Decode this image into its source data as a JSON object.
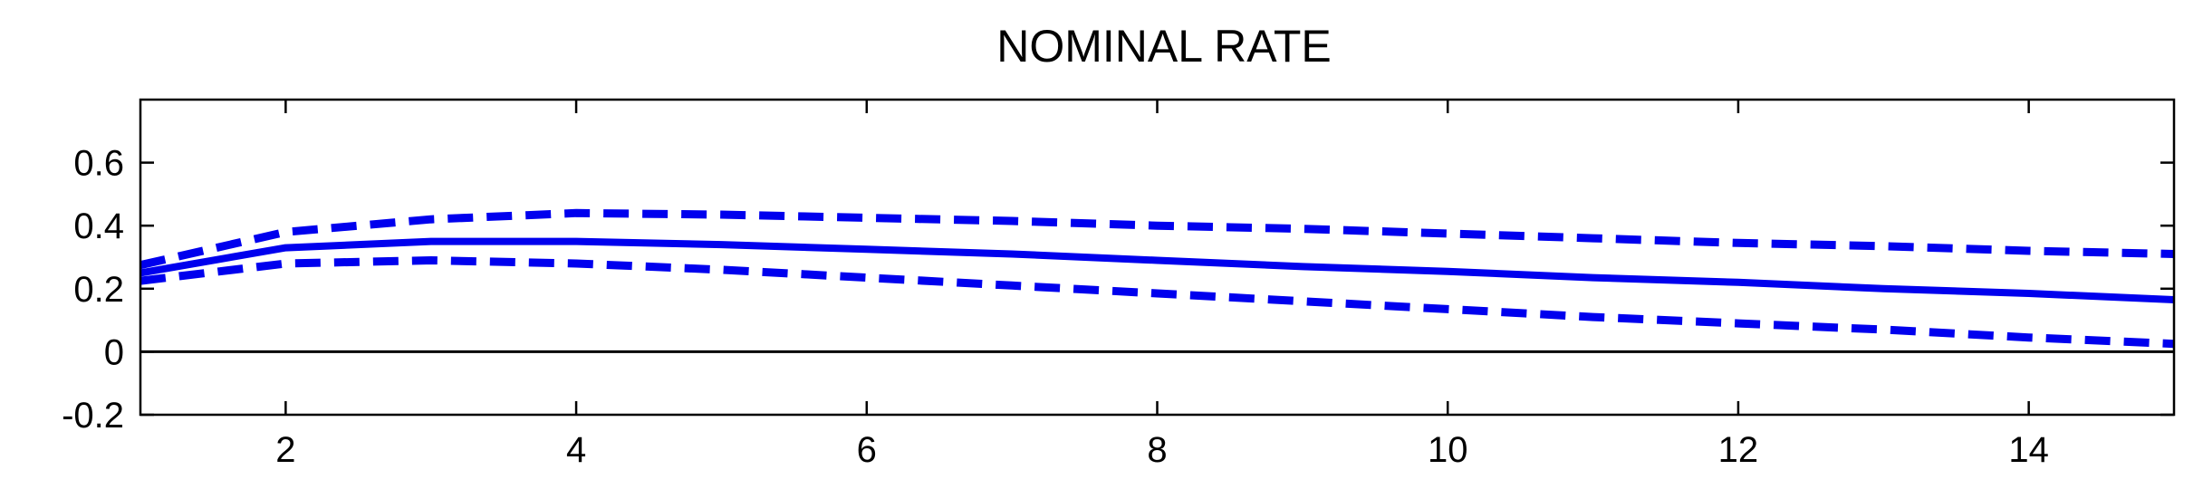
{
  "chart_data": {
    "type": "line",
    "title": "NOMINAL RATE",
    "xlabel": "",
    "ylabel": "",
    "xlim": [
      1,
      15
    ],
    "ylim": [
      -0.2,
      0.8
    ],
    "x_ticks": [
      2,
      4,
      6,
      8,
      10,
      12,
      14
    ],
    "x_tick_labels": [
      "2",
      "4",
      "6",
      "8",
      "10",
      "12",
      "14"
    ],
    "y_ticks": [
      -0.2,
      0,
      0.2,
      0.4,
      0.6
    ],
    "y_tick_labels": [
      "-0.2",
      "0",
      "0.2",
      "0.4",
      "0.6"
    ],
    "grid": false,
    "zero_line": true,
    "colors": {
      "series": "#0000ee",
      "axes": "#000000"
    },
    "x": [
      1,
      2,
      3,
      4,
      5,
      6,
      7,
      8,
      9,
      10,
      11,
      12,
      13,
      14,
      15
    ],
    "series": [
      {
        "style": "solid",
        "values": [
          0.25,
          0.33,
          0.35,
          0.35,
          0.34,
          0.325,
          0.31,
          0.29,
          0.27,
          0.255,
          0.235,
          0.22,
          0.2,
          0.185,
          0.165
        ]
      },
      {
        "style": "dashed",
        "values": [
          0.275,
          0.38,
          0.42,
          0.44,
          0.435,
          0.425,
          0.415,
          0.4,
          0.39,
          0.375,
          0.36,
          0.345,
          0.335,
          0.32,
          0.31
        ]
      },
      {
        "style": "dashed",
        "values": [
          0.225,
          0.28,
          0.29,
          0.28,
          0.26,
          0.235,
          0.21,
          0.185,
          0.16,
          0.135,
          0.11,
          0.09,
          0.07,
          0.045,
          0.025
        ]
      }
    ]
  }
}
